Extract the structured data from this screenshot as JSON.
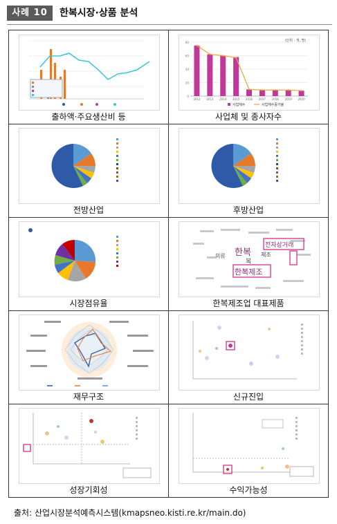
{
  "header": {
    "badge": "사례 10",
    "title": "한복시장·상품 분석"
  },
  "panels": [
    {
      "label": "출하액·주요생산비 등"
    },
    {
      "label": "사업체 및 종사자수"
    },
    {
      "label": "전방산업"
    },
    {
      "label": "후방산업"
    },
    {
      "label": "시장점유율"
    },
    {
      "label": "한복제조업 대표제품"
    },
    {
      "label": "재무구조"
    },
    {
      "label": "신규진입"
    },
    {
      "label": "성장기회성"
    },
    {
      "label": "수익가능성"
    }
  ],
  "source": "출처: 산업시장분석예측시스템(kmapsneo.kisti.re.kr/main.do)",
  "colors": {
    "badge_bg": "#5a5a5a",
    "magenta": "#c0399a",
    "orange": "#e8782a",
    "cyan": "#3cc4d8",
    "pie_blue": "#2e5aa8",
    "pie_lightblue": "#5b9bd5",
    "highlight": "#d0308c"
  },
  "chart_data": [
    {
      "type": "bar",
      "panel": "사업체 및 종사자수",
      "unit_label": "(단위 : 개, 명)",
      "categories": [
        "2012",
        "2013",
        "2014",
        "2015",
        "2016",
        "2017",
        "2018",
        "2019",
        "2020"
      ],
      "series": [
        {
          "name": "사업체수",
          "values": [
            75,
            62,
            60,
            58,
            10,
            9,
            9,
            9,
            8
          ]
        },
        {
          "name": "사업체수증가율",
          "values": [
            75,
            62,
            60,
            57,
            10,
            9,
            9,
            9,
            8
          ]
        }
      ],
      "ylim": [
        0,
        80
      ]
    }
  ],
  "word_cloud": {
    "words": [
      "한복",
      "한복제조",
      "전자상거래",
      "의류",
      "제조",
      "복"
    ]
  }
}
